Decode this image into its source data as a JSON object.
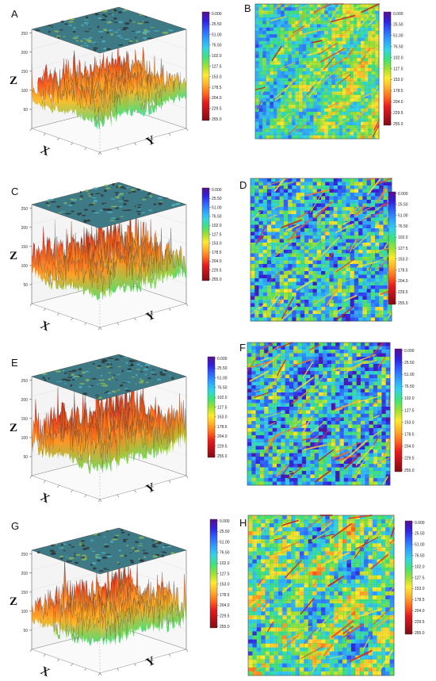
{
  "chart_data": {
    "type": "surface-3d-and-heatmap",
    "colormap": [
      "#5a0f8c",
      "#3020e0",
      "#2f62ff",
      "#2fa0ff",
      "#33d3e6",
      "#3ee27a",
      "#9de033",
      "#ffea2f",
      "#ffb12a",
      "#ff6a1e",
      "#e81c1c",
      "#b8101a",
      "#7e0d14"
    ],
    "colorbar_ticks": [
      "0.000",
      "25.50",
      "51.00",
      "76.50",
      "102.0",
      "127.5",
      "153.0",
      "178.5",
      "204.0",
      "229.5",
      "255.0"
    ],
    "panels": [
      {
        "label": "A",
        "kind": "surface3d",
        "zlabel": "Z",
        "xlabel": "X",
        "ylabel": "Y",
        "z_ticks": [
          "50",
          "100",
          "150",
          "200",
          "250"
        ],
        "mean_level": 110,
        "roughness": 0.45
      },
      {
        "label": "B",
        "kind": "heatmap",
        "mean_level": 0.42,
        "roughness": 0.3
      },
      {
        "label": "C",
        "kind": "surface3d",
        "zlabel": "Z",
        "xlabel": "X",
        "ylabel": "Y",
        "z_ticks": [
          "50",
          "100",
          "150",
          "200",
          "250"
        ],
        "mean_level": 120,
        "roughness": 0.7
      },
      {
        "label": "D",
        "kind": "heatmap",
        "mean_level": 0.32,
        "roughness": 0.45
      },
      {
        "label": "E",
        "kind": "surface3d",
        "zlabel": "Z",
        "xlabel": "X",
        "ylabel": "Y",
        "z_ticks": [
          "50",
          "100",
          "150",
          "200",
          "250"
        ],
        "mean_level": 125,
        "roughness": 0.75
      },
      {
        "label": "F",
        "kind": "heatmap",
        "mean_level": 0.3,
        "roughness": 0.45
      },
      {
        "label": "G",
        "kind": "surface3d",
        "zlabel": "Z",
        "xlabel": "X",
        "ylabel": "Y",
        "z_ticks": [
          "50",
          "100",
          "150",
          "200",
          "250"
        ],
        "mean_level": 115,
        "roughness": 0.65
      },
      {
        "label": "H",
        "kind": "heatmap",
        "mean_level": 0.42,
        "roughness": 0.4
      }
    ]
  }
}
